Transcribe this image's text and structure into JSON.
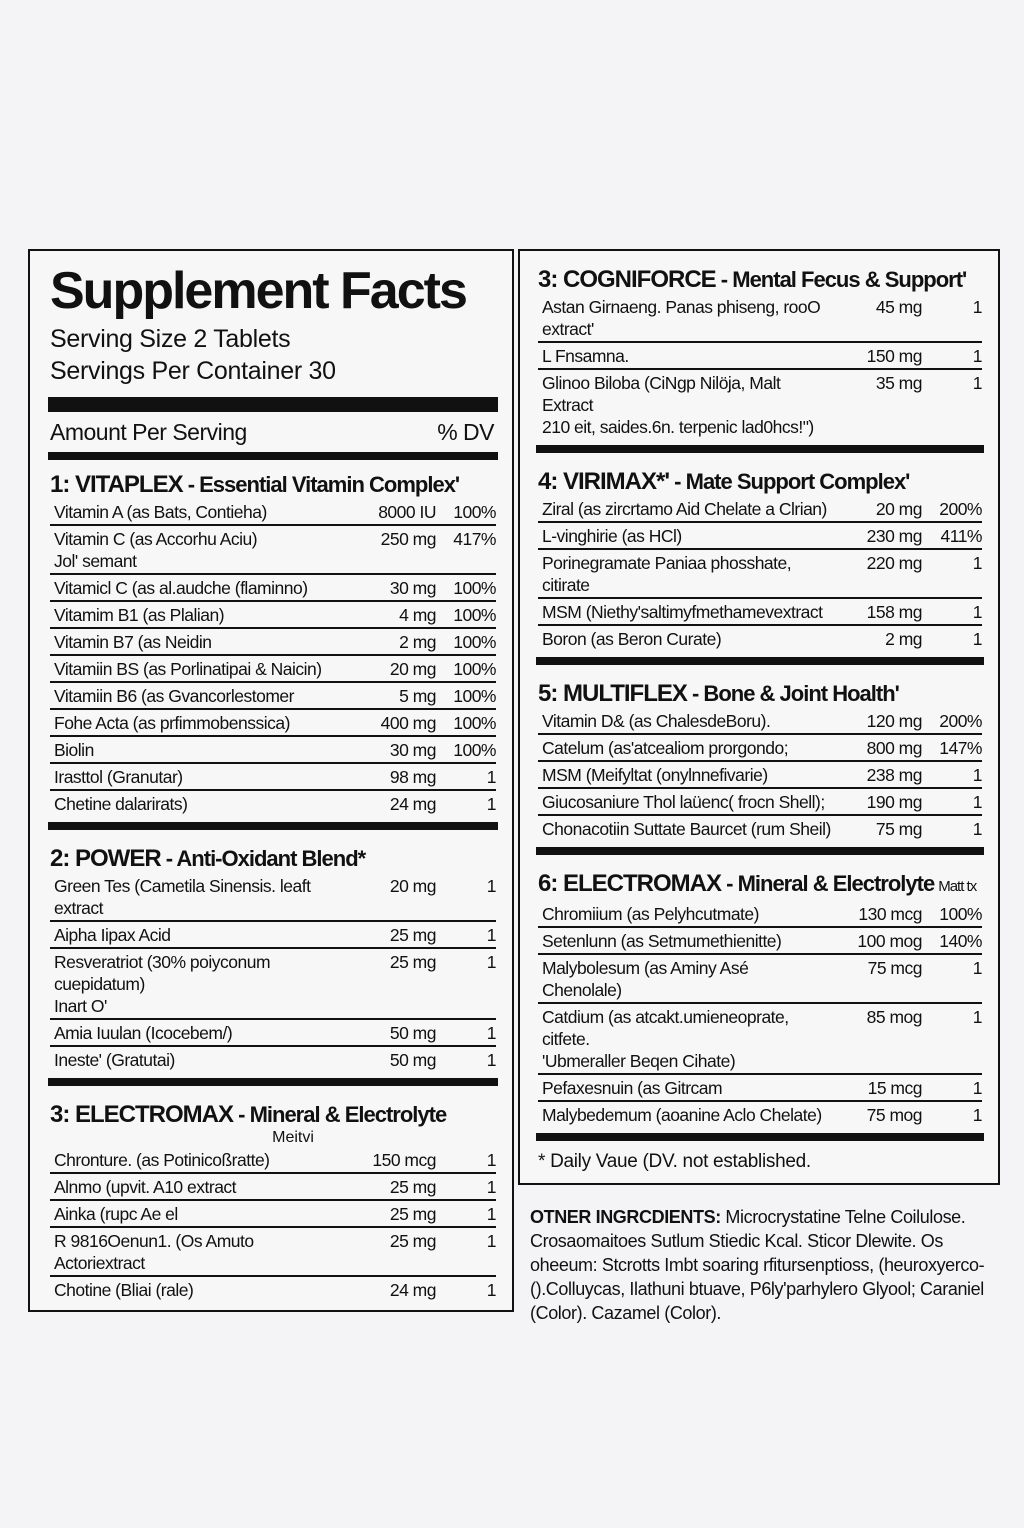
{
  "title": "Supplement Facts",
  "serving_size": "Serving Size 2 Tablets",
  "servings_per_container": "Servings Per Container 30",
  "amount_per_serving": "Amount Per Serving",
  "dv_header": "% DV",
  "left_sections": [
    {
      "name": "1: VITAPLEX",
      "sub": " - Essential Vitamin Complex'",
      "sub2": "",
      "rows": [
        {
          "name": "Vitamin A (as Bats, Contieha)",
          "amount": "8000 IU",
          "dv": "100%"
        },
        {
          "name": "Vitamin C (as Accorhu Aciu)\n Jol' semant",
          "amount": "250 mg",
          "dv": "417%"
        },
        {
          "name": "Vitamicl C (as al.audche (flaminno)",
          "amount": "30 mg",
          "dv": "100%"
        },
        {
          "name": "Vitamim B1 (as Plalian)",
          "amount": "4 mg",
          "dv": "100%"
        },
        {
          "name": "Vitamin B7 (as Neidin",
          "amount": "2 mg",
          "dv": "100%"
        },
        {
          "name": "Vitamiin BS (as Porlinatipai & Naicin)",
          "amount": "20 mg",
          "dv": "100%"
        },
        {
          "name": "Vitamiin B6 (as Gvancorlestomer",
          "amount": "5 mg",
          "dv": "100%"
        },
        {
          "name": "Fohe Acta (as prfimmobenssica)",
          "amount": "400 mg",
          "dv": "100%"
        },
        {
          "name": "Biolin",
          "amount": "30 mg",
          "dv": "100%"
        },
        {
          "name": "Irasttol (Granutar)",
          "amount": "98 mg",
          "dv": "1"
        },
        {
          "name": "Chetine dalarirats)",
          "amount": "24 mg",
          "dv": "1"
        }
      ]
    },
    {
      "name": "2: POWER",
      "sub": " - Anti-Oxidant Blend*",
      "sub2": "",
      "rows": [
        {
          "name": "Green Tes (Cametila Sinensis. leaft extract",
          "amount": "20 mg",
          "dv": "1"
        },
        {
          "name": "Aipha Iipax Acid",
          "amount": "25 mg",
          "dv": "1"
        },
        {
          "name": "Resveratriot (30% poiyconum cuepidatum)\nInart O'",
          "amount": "25 mg",
          "dv": "1"
        },
        {
          "name": "Amia Iuulan (Icocebem/)",
          "amount": "50 mg",
          "dv": "1"
        },
        {
          "name": "Ineste' (Gratutai)",
          "amount": "50 mg",
          "dv": "1"
        }
      ]
    },
    {
      "name": "3: ELECTROMAX",
      "sub": " - Mineral & Electrolyte",
      "sub2": "Meitvi",
      "rows": [
        {
          "name": "Chronture. (as Potinicoßratte)",
          "amount": "150 mcg",
          "dv": "1"
        },
        {
          "name": "Alnmo (upvit. A10 extract",
          "amount": "25 mg",
          "dv": "1"
        },
        {
          "name": "Ainka (rupc Ae el",
          "amount": "25 mg",
          "dv": "1"
        },
        {
          "name": "R 9816Oenun1. (Os Amuto Actoriextract",
          "amount": "25 mg",
          "dv": "1"
        },
        {
          "name": "Chotine (Bliai (rale)",
          "amount": "24 mg",
          "dv": "1"
        }
      ]
    }
  ],
  "right_sections": [
    {
      "name": "3: COGNIFORCE",
      "sub": " - Mental Fecus & Support'",
      "sub2": "",
      "rows": [
        {
          "name": "Astan Girnaeng. Panas phiseng, rooO extract'",
          "amount": "45 mg",
          "dv": "1"
        },
        {
          "name": "L Fnsamna.",
          "amount": "150 mg",
          "dv": "1"
        },
        {
          "name": "Glinoo Biloba (CiNgp Nilöja, Malt Extract\n 210 eit, saides.6n. terpenic lad0hcs!\")",
          "amount": "35 mg",
          "dv": "1"
        }
      ]
    },
    {
      "name": "4: VIRIMAX*'",
      "sub": " - Mate Support Complex'",
      "sub2": "",
      "rows": [
        {
          "name": "Ziral (as zircrtamo Aid Chelate a Clrian)",
          "amount": "20 mg",
          "dv": "200%"
        },
        {
          "name": "L-vinghirie (as HCl)",
          "amount": "230 mg",
          "dv": "411%"
        },
        {
          "name": "Porinegramate Paniaa phosshate, citirate",
          "amount": "220 mg",
          "dv": "1"
        },
        {
          "name": "MSM (Niethy'saltimyfmethamevextract",
          "amount": "158 mg",
          "dv": "1"
        },
        {
          "name": "Boron (as Beron Curate)",
          "amount": "2 mg",
          "dv": "1"
        }
      ]
    },
    {
      "name": "5: MULTIFLEX",
      "sub": " - Bone & Joint Hoalth'",
      "sub2": "",
      "rows": [
        {
          "name": "Vitamin D& (as ChalesdeBoru).",
          "amount": "120 mg",
          "dv": "200%"
        },
        {
          "name": "Catelum (as'atcealiom prorgondo;",
          "amount": "800 mg",
          "dv": "147%"
        },
        {
          "name": "MSM (Meifyltat (onylnnefivarie)",
          "amount": "238 mg",
          "dv": "1"
        },
        {
          "name": "Giucosaniure Thol laüenc( frocn Shell);",
          "amount": "190 mg",
          "dv": "1"
        },
        {
          "name": "Chonacotiin Suttate Baurcet (rum Sheil)",
          "amount": "75 mg",
          "dv": "1"
        }
      ]
    },
    {
      "name": "6: ELECTROMAX",
      "sub": " - Mineral & Electrolyte",
      "sub3": "Matt tx",
      "sub2": "",
      "rows": [
        {
          "name": "Chromiium (as Pelyhcutmate)",
          "amount": "130 mcg",
          "dv": "100%"
        },
        {
          "name": "Setenlunn (as Setmumethienitte)",
          "amount": "100 mog",
          "dv": "140%"
        },
        {
          "name": "Malybolesum (as Aminy Asé Chenolale)",
          "amount": "75 mcg",
          "dv": "1"
        },
        {
          "name": "Catdium (as atcakt.umieneoprate, citfete.\n 'Ubmeraller Beqen Cihate)",
          "amount": "85 mog",
          "dv": "1"
        },
        {
          "name": "Pefaxesnuin (as Gitrcam",
          "amount": "15 mcg",
          "dv": "1"
        },
        {
          "name": "Malybedemum (aoanine Aclo Chelate)",
          "amount": "75 mog",
          "dv": "1"
        }
      ]
    }
  ],
  "footnote": "* Daily Vaue (DV. not established.",
  "other_ingredients": {
    "label": "OTNER INGRCDIENTS:",
    "text": " Microcrystatine Telne Coilulose. Crosaomaitoes Sutlum Stiedic Kcal. Sticor Dlewite. Os oheeum: Stcrotts Imbt soaring rfitursenptioss, (heuroxyerco- ().Colluycas, Ilathuni btuave, P6ly'parhylero Glyool; Caraniel (Color). Cazamel (Color)."
  }
}
